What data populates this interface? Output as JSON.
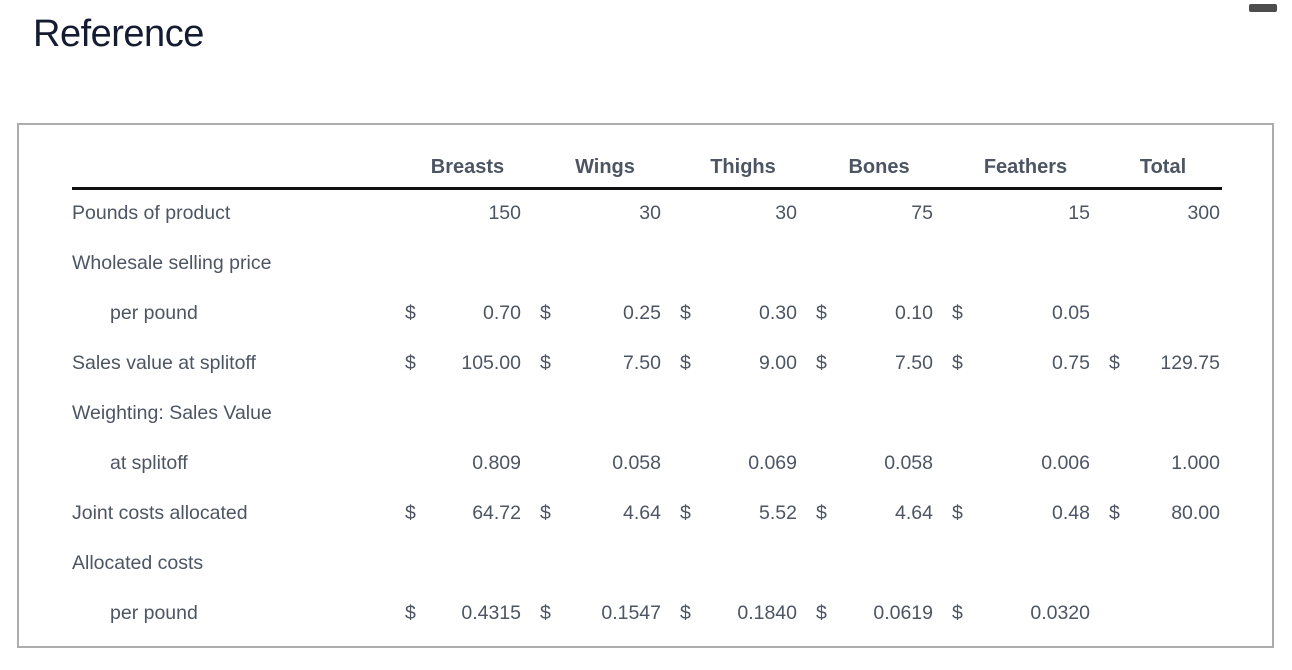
{
  "page": {
    "title": "Reference"
  },
  "table": {
    "columns": [
      "Breasts",
      "Wings",
      "Thighs",
      "Bones",
      "Feathers",
      "Total"
    ],
    "rows": [
      {
        "label": "Pounds of product",
        "indent": false,
        "cells": [
          {
            "value": "150"
          },
          {
            "value": "30"
          },
          {
            "value": "30"
          },
          {
            "value": "75"
          },
          {
            "value": "15"
          },
          {
            "value": "300"
          }
        ]
      },
      {
        "label": "Wholesale selling price",
        "indent": false,
        "cells": [
          {},
          {},
          {},
          {},
          {},
          {}
        ]
      },
      {
        "label": "per pound",
        "indent": true,
        "cells": [
          {
            "prefix": "$",
            "value": "0.70"
          },
          {
            "prefix": "$",
            "value": "0.25"
          },
          {
            "prefix": "$",
            "value": "0.30"
          },
          {
            "prefix": "$",
            "value": "0.10"
          },
          {
            "prefix": "$",
            "value": "0.05"
          },
          {}
        ]
      },
      {
        "label": "Sales value at splitoff",
        "indent": false,
        "cells": [
          {
            "prefix": "$",
            "value": "105.00"
          },
          {
            "prefix": "$",
            "value": "7.50"
          },
          {
            "prefix": "$",
            "value": "9.00"
          },
          {
            "prefix": "$",
            "value": "7.50"
          },
          {
            "prefix": "$",
            "value": "0.75"
          },
          {
            "prefix": "$",
            "value": "129.75"
          }
        ]
      },
      {
        "label": "Weighting: Sales Value",
        "indent": false,
        "cells": [
          {},
          {},
          {},
          {},
          {},
          {}
        ]
      },
      {
        "label": "at splitoff",
        "indent": true,
        "cells": [
          {
            "value": "0.809"
          },
          {
            "value": "0.058"
          },
          {
            "value": "0.069"
          },
          {
            "value": "0.058"
          },
          {
            "value": "0.006"
          },
          {
            "value": "1.000"
          }
        ]
      },
      {
        "label": "Joint costs allocated",
        "indent": false,
        "cells": [
          {
            "prefix": "$",
            "value": "64.72"
          },
          {
            "prefix": "$",
            "value": "4.64"
          },
          {
            "prefix": "$",
            "value": "5.52"
          },
          {
            "prefix": "$",
            "value": "4.64"
          },
          {
            "prefix": "$",
            "value": "0.48"
          },
          {
            "prefix": "$",
            "value": "80.00"
          }
        ]
      },
      {
        "label": "Allocated costs",
        "indent": false,
        "cells": [
          {},
          {},
          {},
          {},
          {},
          {}
        ]
      },
      {
        "label": "per pound",
        "indent": true,
        "cells": [
          {
            "prefix": "$",
            "value": "0.4315"
          },
          {
            "prefix": "$",
            "value": "0.1547"
          },
          {
            "prefix": "$",
            "value": "0.1840"
          },
          {
            "prefix": "$",
            "value": "0.0619"
          },
          {
            "prefix": "$",
            "value": "0.0320"
          },
          {}
        ]
      }
    ]
  }
}
